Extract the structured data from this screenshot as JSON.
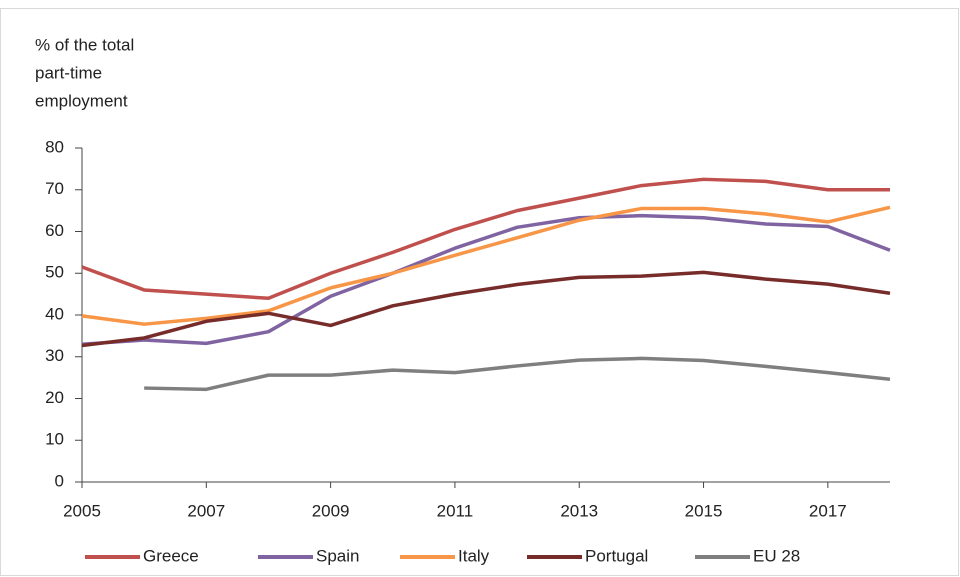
{
  "chart_data": {
    "type": "line",
    "ylabel": [
      "% of the total",
      "part-time",
      "employment"
    ],
    "x": [
      2005,
      2006,
      2007,
      2008,
      2009,
      2010,
      2011,
      2012,
      2013,
      2014,
      2015,
      2016,
      2017,
      2018
    ],
    "xlim": [
      2005,
      2018
    ],
    "xticks": [
      2005,
      2007,
      2009,
      2011,
      2013,
      2015,
      2017
    ],
    "ylim": [
      0,
      80
    ],
    "yticks": [
      0,
      10,
      20,
      30,
      40,
      50,
      60,
      70,
      80
    ],
    "legend": "bottom",
    "series": [
      {
        "name": "Greece",
        "color": "#c0504d",
        "values": [
          51.5,
          46,
          45,
          44,
          50,
          55,
          60.5,
          65,
          68,
          71,
          72.5,
          72,
          70,
          70
        ]
      },
      {
        "name": "Spain",
        "color": "#8064a2",
        "values": [
          33,
          34,
          33.2,
          36,
          44.5,
          50,
          56,
          61,
          63.3,
          63.8,
          63.3,
          61.8,
          61.2,
          55.5
        ]
      },
      {
        "name": "Italy",
        "color": "#f79646",
        "values": [
          39.8,
          37.8,
          39.2,
          41,
          46.5,
          50,
          54.3,
          58.5,
          62.7,
          65.5,
          65.5,
          64.2,
          62.3,
          65.8
        ]
      },
      {
        "name": "Portugal",
        "color": "#772c2a",
        "values": [
          32.7,
          34.5,
          38.5,
          40.4,
          37.5,
          42.2,
          45,
          47.3,
          49,
          49.3,
          50.2,
          48.6,
          47.4,
          45.2
        ]
      },
      {
        "name": "EU 28",
        "color": "#7f7f7f",
        "values": [
          null,
          22.5,
          22.2,
          25.6,
          25.6,
          26.8,
          26.2,
          27.8,
          29.2,
          29.6,
          29.1,
          27.7,
          26.2,
          24.6
        ]
      }
    ]
  }
}
